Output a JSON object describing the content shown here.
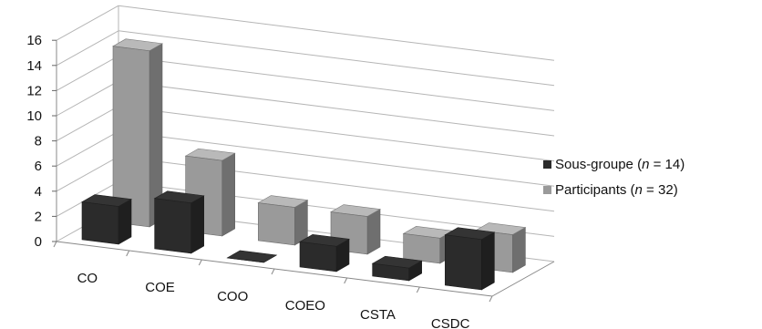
{
  "chart_data": {
    "type": "bar",
    "categories": [
      "CO",
      "COE",
      "COO",
      "COEO",
      "CSTA",
      "CSDC"
    ],
    "series": [
      {
        "name": "Sous-groupe",
        "n_label": "n",
        "n_value": "14",
        "values": [
          3,
          4,
          0,
          2,
          1,
          4
        ],
        "color": "#2b2b2b"
      },
      {
        "name": "Participants",
        "n_label": "n",
        "n_value": "32",
        "values": [
          14,
          6,
          3,
          3,
          2,
          3
        ],
        "color": "#9a9a9a"
      }
    ],
    "ylim": [
      0,
      16
    ],
    "yticks": [
      "0",
      "2",
      "4",
      "6",
      "8",
      "10",
      "12",
      "14",
      "16"
    ],
    "grid": true,
    "legend_position": "right",
    "style": "3d-clustered-bar"
  }
}
